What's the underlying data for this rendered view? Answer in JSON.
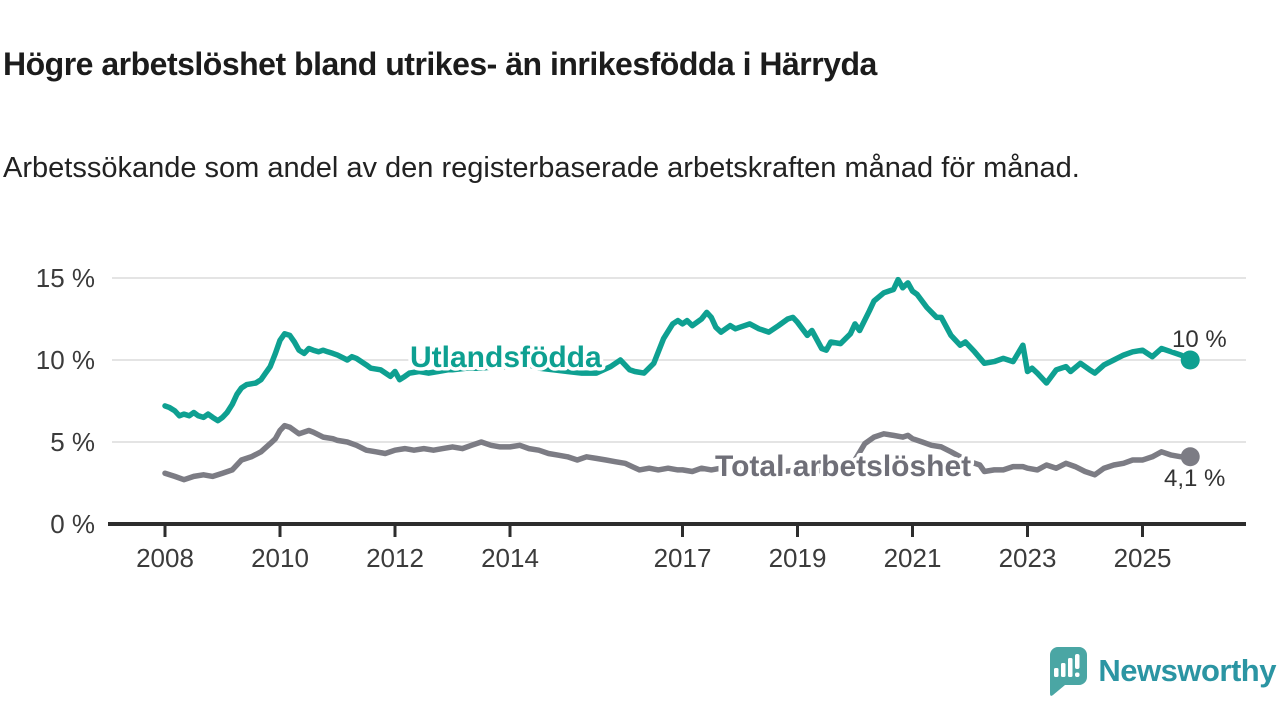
{
  "title": "Högre arbetslöshet bland utrikes- än inrikesfödda i Härryda",
  "subtitle": "Arbetssökande som andel av den registerbaserade arbetskraften månad för månad.",
  "branding": {
    "name": "Newsworthy",
    "icon": "speech-bubble-bar-chart",
    "text_color": "#2b95a3",
    "icon_color": "#4aa6a4"
  },
  "colors": {
    "foreign_born_line": "#0ea091",
    "total_line": "#7c7c84",
    "axis": "#2d2d2d",
    "grid": "#dcdcdc",
    "label_text": "#333333"
  },
  "chart_data": {
    "type": "line",
    "title": "Högre arbetslöshet bland utrikes- än inrikesfödda i Härryda",
    "subtitle": "Arbetssökande som andel av den registerbaserade arbetskraften månad för månad.",
    "unit": "%",
    "x_range": [
      2008,
      2026
    ],
    "ylim": [
      0,
      15
    ],
    "grid": "horizontal",
    "legend_position": "inline-labels",
    "y_ticks": [
      {
        "value": 0,
        "label": "0 %"
      },
      {
        "value": 5,
        "label": "5 %"
      },
      {
        "value": 10,
        "label": "10 %"
      },
      {
        "value": 15,
        "label": "15 %"
      }
    ],
    "x_ticks": [
      {
        "year": 2008,
        "label": "2008"
      },
      {
        "year": 2010,
        "label": "2010"
      },
      {
        "year": 2012,
        "label": "2012"
      },
      {
        "year": 2014,
        "label": "2014"
      },
      {
        "year": 2017,
        "label": "2017"
      },
      {
        "year": 2019,
        "label": "2019"
      },
      {
        "year": 2021,
        "label": "2021"
      },
      {
        "year": 2023,
        "label": "2023"
      },
      {
        "year": 2025,
        "label": "2025"
      }
    ],
    "series": [
      {
        "name": "Utlandsfödda",
        "color": "#0ea091",
        "end_label": "10 %",
        "last_value": 10.0,
        "points": [
          [
            2008.0,
            7.2
          ],
          [
            2008.08,
            7.1
          ],
          [
            2008.17,
            6.9
          ],
          [
            2008.25,
            6.6
          ],
          [
            2008.33,
            6.7
          ],
          [
            2008.42,
            6.6
          ],
          [
            2008.5,
            6.8
          ],
          [
            2008.58,
            6.6
          ],
          [
            2008.67,
            6.5
          ],
          [
            2008.75,
            6.7
          ],
          [
            2008.83,
            6.5
          ],
          [
            2008.92,
            6.3
          ],
          [
            2009.0,
            6.5
          ],
          [
            2009.08,
            6.8
          ],
          [
            2009.17,
            7.3
          ],
          [
            2009.25,
            7.9
          ],
          [
            2009.33,
            8.3
          ],
          [
            2009.42,
            8.5
          ],
          [
            2009.5,
            8.55
          ],
          [
            2009.58,
            8.6
          ],
          [
            2009.67,
            8.8
          ],
          [
            2009.75,
            9.2
          ],
          [
            2009.83,
            9.6
          ],
          [
            2009.92,
            10.4
          ],
          [
            2010.0,
            11.2
          ],
          [
            2010.08,
            11.6
          ],
          [
            2010.17,
            11.5
          ],
          [
            2010.25,
            11.1
          ],
          [
            2010.33,
            10.6
          ],
          [
            2010.42,
            10.4
          ],
          [
            2010.5,
            10.7
          ],
          [
            2010.58,
            10.6
          ],
          [
            2010.67,
            10.5
          ],
          [
            2010.75,
            10.6
          ],
          [
            2010.83,
            10.5
          ],
          [
            2010.92,
            10.4
          ],
          [
            2011.0,
            10.3
          ],
          [
            2011.17,
            10.0
          ],
          [
            2011.25,
            10.2
          ],
          [
            2011.33,
            10.1
          ],
          [
            2011.5,
            9.7
          ],
          [
            2011.58,
            9.5
          ],
          [
            2011.75,
            9.4
          ],
          [
            2011.92,
            9.0
          ],
          [
            2012.0,
            9.3
          ],
          [
            2012.08,
            8.8
          ],
          [
            2012.17,
            9.0
          ],
          [
            2012.25,
            9.2
          ],
          [
            2012.42,
            9.3
          ],
          [
            2012.58,
            9.2
          ],
          [
            2012.75,
            9.3
          ],
          [
            2012.92,
            9.4
          ],
          [
            2013.0,
            9.4
          ],
          [
            2013.25,
            9.5
          ],
          [
            2013.5,
            9.5
          ],
          [
            2013.75,
            9.6
          ],
          [
            2014.0,
            9.6
          ],
          [
            2014.25,
            9.8
          ],
          [
            2014.5,
            9.5
          ],
          [
            2014.75,
            9.4
          ],
          [
            2015.0,
            9.3
          ],
          [
            2015.25,
            9.2
          ],
          [
            2015.5,
            9.2
          ],
          [
            2015.75,
            9.6
          ],
          [
            2015.92,
            10.0
          ],
          [
            2016.08,
            9.4
          ],
          [
            2016.17,
            9.3
          ],
          [
            2016.33,
            9.2
          ],
          [
            2016.5,
            9.8
          ],
          [
            2016.67,
            11.3
          ],
          [
            2016.83,
            12.2
          ],
          [
            2016.92,
            12.4
          ],
          [
            2017.0,
            12.2
          ],
          [
            2017.08,
            12.4
          ],
          [
            2017.17,
            12.1
          ],
          [
            2017.33,
            12.5
          ],
          [
            2017.42,
            12.9
          ],
          [
            2017.5,
            12.6
          ],
          [
            2017.58,
            12.0
          ],
          [
            2017.67,
            11.7
          ],
          [
            2017.83,
            12.1
          ],
          [
            2017.92,
            11.9
          ],
          [
            2018.0,
            12.0
          ],
          [
            2018.17,
            12.2
          ],
          [
            2018.33,
            11.9
          ],
          [
            2018.5,
            11.7
          ],
          [
            2018.67,
            12.1
          ],
          [
            2018.83,
            12.5
          ],
          [
            2018.92,
            12.6
          ],
          [
            2019.0,
            12.3
          ],
          [
            2019.17,
            11.5
          ],
          [
            2019.25,
            11.8
          ],
          [
            2019.42,
            10.7
          ],
          [
            2019.5,
            10.6
          ],
          [
            2019.58,
            11.1
          ],
          [
            2019.75,
            11.0
          ],
          [
            2019.92,
            11.6
          ],
          [
            2020.0,
            12.2
          ],
          [
            2020.08,
            11.8
          ],
          [
            2020.25,
            13.0
          ],
          [
            2020.33,
            13.6
          ],
          [
            2020.5,
            14.1
          ],
          [
            2020.67,
            14.3
          ],
          [
            2020.75,
            14.9
          ],
          [
            2020.83,
            14.4
          ],
          [
            2020.92,
            14.7
          ],
          [
            2021.0,
            14.2
          ],
          [
            2021.08,
            14.0
          ],
          [
            2021.25,
            13.2
          ],
          [
            2021.42,
            12.6
          ],
          [
            2021.5,
            12.6
          ],
          [
            2021.67,
            11.5
          ],
          [
            2021.83,
            10.9
          ],
          [
            2021.92,
            11.1
          ],
          [
            2022.08,
            10.5
          ],
          [
            2022.25,
            9.8
          ],
          [
            2022.42,
            9.9
          ],
          [
            2022.58,
            10.1
          ],
          [
            2022.75,
            9.9
          ],
          [
            2022.92,
            10.9
          ],
          [
            2023.0,
            9.3
          ],
          [
            2023.08,
            9.5
          ],
          [
            2023.17,
            9.2
          ],
          [
            2023.33,
            8.6
          ],
          [
            2023.5,
            9.4
          ],
          [
            2023.67,
            9.6
          ],
          [
            2023.75,
            9.3
          ],
          [
            2023.92,
            9.8
          ],
          [
            2024.08,
            9.4
          ],
          [
            2024.17,
            9.2
          ],
          [
            2024.33,
            9.7
          ],
          [
            2024.5,
            10.0
          ],
          [
            2024.67,
            10.3
          ],
          [
            2024.83,
            10.5
          ],
          [
            2025.0,
            10.6
          ],
          [
            2025.17,
            10.2
          ],
          [
            2025.33,
            10.7
          ],
          [
            2025.5,
            10.5
          ],
          [
            2025.67,
            10.3
          ],
          [
            2025.83,
            10.0
          ]
        ]
      },
      {
        "name": "Total arbetslöshet",
        "color": "#7c7c84",
        "end_label": "4,1 %",
        "last_value": 4.1,
        "points": [
          [
            2008.0,
            3.1
          ],
          [
            2008.17,
            2.9
          ],
          [
            2008.33,
            2.7
          ],
          [
            2008.5,
            2.9
          ],
          [
            2008.67,
            3.0
          ],
          [
            2008.83,
            2.9
          ],
          [
            2009.0,
            3.1
          ],
          [
            2009.17,
            3.3
          ],
          [
            2009.33,
            3.9
          ],
          [
            2009.5,
            4.1
          ],
          [
            2009.67,
            4.4
          ],
          [
            2009.83,
            4.9
          ],
          [
            2009.92,
            5.2
          ],
          [
            2010.0,
            5.7
          ],
          [
            2010.08,
            6.0
          ],
          [
            2010.17,
            5.9
          ],
          [
            2010.33,
            5.5
          ],
          [
            2010.5,
            5.7
          ],
          [
            2010.58,
            5.6
          ],
          [
            2010.75,
            5.3
          ],
          [
            2010.92,
            5.2
          ],
          [
            2011.0,
            5.1
          ],
          [
            2011.17,
            5.0
          ],
          [
            2011.33,
            4.8
          ],
          [
            2011.5,
            4.5
          ],
          [
            2011.67,
            4.4
          ],
          [
            2011.83,
            4.3
          ],
          [
            2011.92,
            4.4
          ],
          [
            2012.0,
            4.5
          ],
          [
            2012.17,
            4.6
          ],
          [
            2012.33,
            4.5
          ],
          [
            2012.5,
            4.6
          ],
          [
            2012.67,
            4.5
          ],
          [
            2012.83,
            4.6
          ],
          [
            2013.0,
            4.7
          ],
          [
            2013.17,
            4.6
          ],
          [
            2013.33,
            4.8
          ],
          [
            2013.5,
            5.0
          ],
          [
            2013.67,
            4.8
          ],
          [
            2013.83,
            4.7
          ],
          [
            2014.0,
            4.7
          ],
          [
            2014.17,
            4.8
          ],
          [
            2014.33,
            4.6
          ],
          [
            2014.5,
            4.5
          ],
          [
            2014.67,
            4.3
          ],
          [
            2014.83,
            4.2
          ],
          [
            2015.0,
            4.1
          ],
          [
            2015.17,
            3.9
          ],
          [
            2015.33,
            4.1
          ],
          [
            2015.5,
            4.0
          ],
          [
            2015.67,
            3.9
          ],
          [
            2015.83,
            3.8
          ],
          [
            2016.0,
            3.7
          ],
          [
            2016.25,
            3.3
          ],
          [
            2016.42,
            3.4
          ],
          [
            2016.58,
            3.3
          ],
          [
            2016.75,
            3.4
          ],
          [
            2016.92,
            3.3
          ],
          [
            2017.0,
            3.3
          ],
          [
            2017.17,
            3.2
          ],
          [
            2017.33,
            3.4
          ],
          [
            2017.5,
            3.3
          ],
          [
            2017.67,
            3.4
          ],
          [
            2017.83,
            3.3
          ],
          [
            2018.0,
            3.3
          ],
          [
            2018.25,
            3.2
          ],
          [
            2018.5,
            3.3
          ],
          [
            2018.75,
            3.2
          ],
          [
            2019.0,
            3.3
          ],
          [
            2019.25,
            3.2
          ],
          [
            2019.5,
            3.3
          ],
          [
            2019.75,
            3.4
          ],
          [
            2019.92,
            3.6
          ],
          [
            2020.0,
            3.9
          ],
          [
            2020.17,
            4.9
          ],
          [
            2020.33,
            5.3
          ],
          [
            2020.5,
            5.5
          ],
          [
            2020.67,
            5.4
          ],
          [
            2020.83,
            5.3
          ],
          [
            2020.92,
            5.4
          ],
          [
            2021.0,
            5.2
          ],
          [
            2021.17,
            5.0
          ],
          [
            2021.33,
            4.8
          ],
          [
            2021.5,
            4.7
          ],
          [
            2021.67,
            4.4
          ],
          [
            2021.83,
            4.1
          ],
          [
            2022.0,
            3.8
          ],
          [
            2022.17,
            3.6
          ],
          [
            2022.25,
            3.2
          ],
          [
            2022.42,
            3.3
          ],
          [
            2022.58,
            3.3
          ],
          [
            2022.75,
            3.5
          ],
          [
            2022.92,
            3.5
          ],
          [
            2023.0,
            3.4
          ],
          [
            2023.17,
            3.3
          ],
          [
            2023.33,
            3.6
          ],
          [
            2023.5,
            3.4
          ],
          [
            2023.67,
            3.7
          ],
          [
            2023.83,
            3.5
          ],
          [
            2024.0,
            3.2
          ],
          [
            2024.17,
            3.0
          ],
          [
            2024.33,
            3.4
          ],
          [
            2024.5,
            3.6
          ],
          [
            2024.67,
            3.7
          ],
          [
            2024.83,
            3.9
          ],
          [
            2025.0,
            3.9
          ],
          [
            2025.17,
            4.1
          ],
          [
            2025.33,
            4.4
          ],
          [
            2025.5,
            4.2
          ],
          [
            2025.67,
            4.1
          ],
          [
            2025.83,
            4.1
          ]
        ]
      }
    ]
  }
}
